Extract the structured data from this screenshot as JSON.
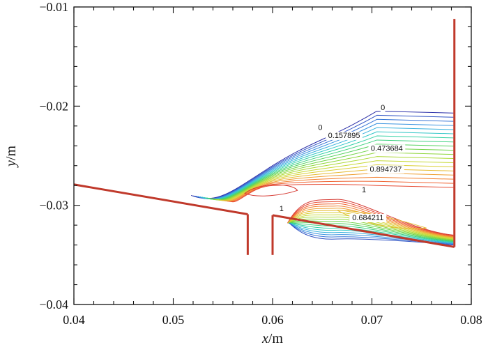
{
  "chart_data": {
    "type": "contour",
    "xlabel_var": "x",
    "xlabel_unit": "/m",
    "ylabel_var": "y",
    "ylabel_unit": "/m",
    "xlim": [
      0.04,
      0.08
    ],
    "ylim": [
      -0.04,
      -0.01
    ],
    "x_ticks": [
      0.04,
      0.05,
      0.06,
      0.07,
      0.08
    ],
    "x_tick_labels": [
      "0.04",
      "0.05",
      "0.06",
      "0.07",
      "0.08"
    ],
    "y_ticks": [
      -0.04,
      -0.03,
      -0.02,
      -0.01
    ],
    "y_tick_labels": [
      "−0.04",
      "−0.03",
      "−0.02",
      "−0.01"
    ],
    "grid": false,
    "walls": [
      {
        "name": "upstream-wall",
        "points": [
          [
            0.04,
            -0.0279
          ],
          [
            0.0575,
            -0.0309
          ]
        ]
      },
      {
        "name": "slot-left-wall",
        "points": [
          [
            0.0575,
            -0.0309
          ],
          [
            0.0575,
            -0.035
          ]
        ]
      },
      {
        "name": "slot-right-wall",
        "points": [
          [
            0.06,
            -0.035
          ],
          [
            0.06,
            -0.031
          ]
        ]
      },
      {
        "name": "downstream-wall",
        "points": [
          [
            0.06,
            -0.031
          ],
          [
            0.0783,
            -0.0342
          ]
        ]
      },
      {
        "name": "outlet-wall",
        "points": [
          [
            0.0783,
            -0.0342
          ],
          [
            0.0783,
            -0.0112
          ]
        ]
      }
    ],
    "contour_levels": [
      0,
      0.052632,
      0.105263,
      0.157895,
      0.210526,
      0.263158,
      0.315789,
      0.368421,
      0.421053,
      0.473684,
      0.526316,
      0.578947,
      0.631579,
      0.684211,
      0.736842,
      0.789474,
      0.842105,
      0.894737,
      0.947368,
      1
    ],
    "contour_colors": [
      "#2b2fa8",
      "#2f52c4",
      "#3674d6",
      "#3a94e0",
      "#39b1dd",
      "#35c7c8",
      "#35d2a5",
      "#3fd27f",
      "#52d15b",
      "#6fd345",
      "#8ed63a",
      "#acd935",
      "#c6d934",
      "#d9cf33",
      "#e6bb33",
      "#ee9f32",
      "#f28132",
      "#f06432",
      "#e64a33",
      "#d63a33"
    ],
    "contour_labels": [
      {
        "text": "0",
        "x": 0.0711,
        "y": -0.0204
      },
      {
        "text": "0",
        "x": 0.0648,
        "y": -0.0224
      },
      {
        "text": "0.157895",
        "x": 0.0672,
        "y": -0.0232
      },
      {
        "text": "0.473684",
        "x": 0.0715,
        "y": -0.0245
      },
      {
        "text": "0.894737",
        "x": 0.0714,
        "y": -0.0266
      },
      {
        "text": "1",
        "x": 0.0692,
        "y": -0.0287
      },
      {
        "text": "1",
        "x": 0.0609,
        "y": -0.0306
      },
      {
        "text": "0.684211",
        "x": 0.0696,
        "y": -0.0315
      }
    ]
  }
}
